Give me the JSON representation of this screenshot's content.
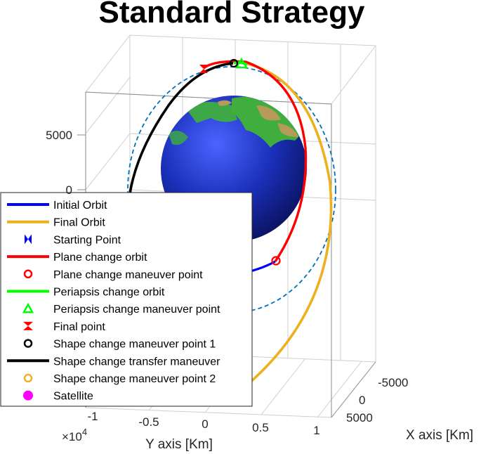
{
  "chart_data": {
    "type": "line",
    "title": "Standard Strategy",
    "xlabel": "Y axis [Km]",
    "depth_label": "X axis [Km]",
    "x_ticks": [
      "-1",
      "-0.5",
      "0",
      "0.5",
      "1"
    ],
    "x_multiplier": "×10",
    "x_multiplier_exp": "4",
    "z_ticks": [
      "0",
      "5000"
    ],
    "depth_ticks": [
      "-5000",
      "0",
      "5000"
    ],
    "grid": true,
    "legend_position": "bottom-left",
    "legend": [
      {
        "label": "Initial Orbit",
        "kind": "line",
        "color": "#0000ff"
      },
      {
        "label": "Final Orbit",
        "kind": "line",
        "color": "#edb120"
      },
      {
        "label": "Starting Point",
        "kind": "bowtie",
        "color": "#0000ff"
      },
      {
        "label": "Plane change orbit",
        "kind": "line",
        "color": "#ff0000"
      },
      {
        "label": "Plane change maneuver point",
        "kind": "circle",
        "color": "#ff0000"
      },
      {
        "label": "Periapsis change orbit",
        "kind": "line",
        "color": "#00ff00"
      },
      {
        "label": "Periapsis change maneuver point",
        "kind": "triangle",
        "color": "#00ff00"
      },
      {
        "label": "Final point",
        "kind": "hourglass",
        "color": "#ff0000"
      },
      {
        "label": "Shape change maneuver point 1",
        "kind": "circle",
        "color": "#000000"
      },
      {
        "label": "Shape change transfer maneuver",
        "kind": "line",
        "color": "#000000"
      },
      {
        "label": "Shape change maneuver point 2",
        "kind": "circle",
        "color": "#edb120"
      },
      {
        "label": "Satellite",
        "kind": "dot",
        "color": "#ff00ff"
      }
    ],
    "earth_colors": {
      "ocean": "#1a2fb8",
      "land": "#3fae3f",
      "desert": "#b59a5a"
    },
    "dashed_orbit_color": "#0072bd"
  }
}
